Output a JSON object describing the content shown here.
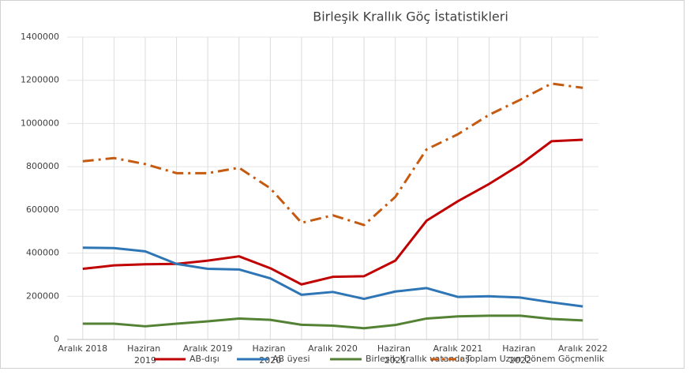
{
  "chart_data": {
    "type": "line",
    "title": "Birleşik Krallık Göç İstatistikleri",
    "categories": [
      "Aralık 2018",
      null,
      "Haziran 2019",
      null,
      "Aralık 2019",
      null,
      "Haziran 2020",
      null,
      "Aralık 2020",
      null,
      "Haziran 2021",
      null,
      "Aralık 2021",
      null,
      "Haziran 2022",
      null,
      "Aralık 2022"
    ],
    "series": [
      {
        "name": "AB-dışı",
        "color": "#c00000",
        "dash": false,
        "values": [
          327000,
          343000,
          348000,
          350000,
          365000,
          385000,
          330000,
          255000,
          290000,
          293000,
          365000,
          550000,
          640000,
          720000,
          810000,
          918000,
          925000
        ]
      },
      {
        "name": "AB üyesi",
        "color": "#2e75b6",
        "dash": false,
        "values": [
          425000,
          423000,
          408000,
          350000,
          327000,
          324000,
          283000,
          207000,
          220000,
          188000,
          222000,
          238000,
          197000,
          200000,
          194000,
          172000,
          153000
        ]
      },
      {
        "name": "Birleşik Krallık vatandaşı",
        "color": "#548235",
        "dash": false,
        "values": [
          73000,
          73000,
          61000,
          73000,
          84000,
          97000,
          91000,
          68000,
          64000,
          52000,
          67000,
          97000,
          107000,
          110000,
          110000,
          95000,
          88000
        ]
      },
      {
        "name": "Toplam Uzun Dönem Göçmenlik",
        "color": "#c55a11",
        "dash": true,
        "values": [
          825000,
          840000,
          812000,
          770000,
          770000,
          795000,
          700000,
          540000,
          575000,
          530000,
          660000,
          880000,
          950000,
          1040000,
          1110000,
          1185000,
          1165000
        ]
      }
    ],
    "ylim": [
      0,
      1400000
    ],
    "yticks": [
      0,
      200000,
      400000,
      600000,
      800000,
      1000000,
      1200000,
      1400000
    ],
    "grid": true,
    "legend": "bottom"
  }
}
